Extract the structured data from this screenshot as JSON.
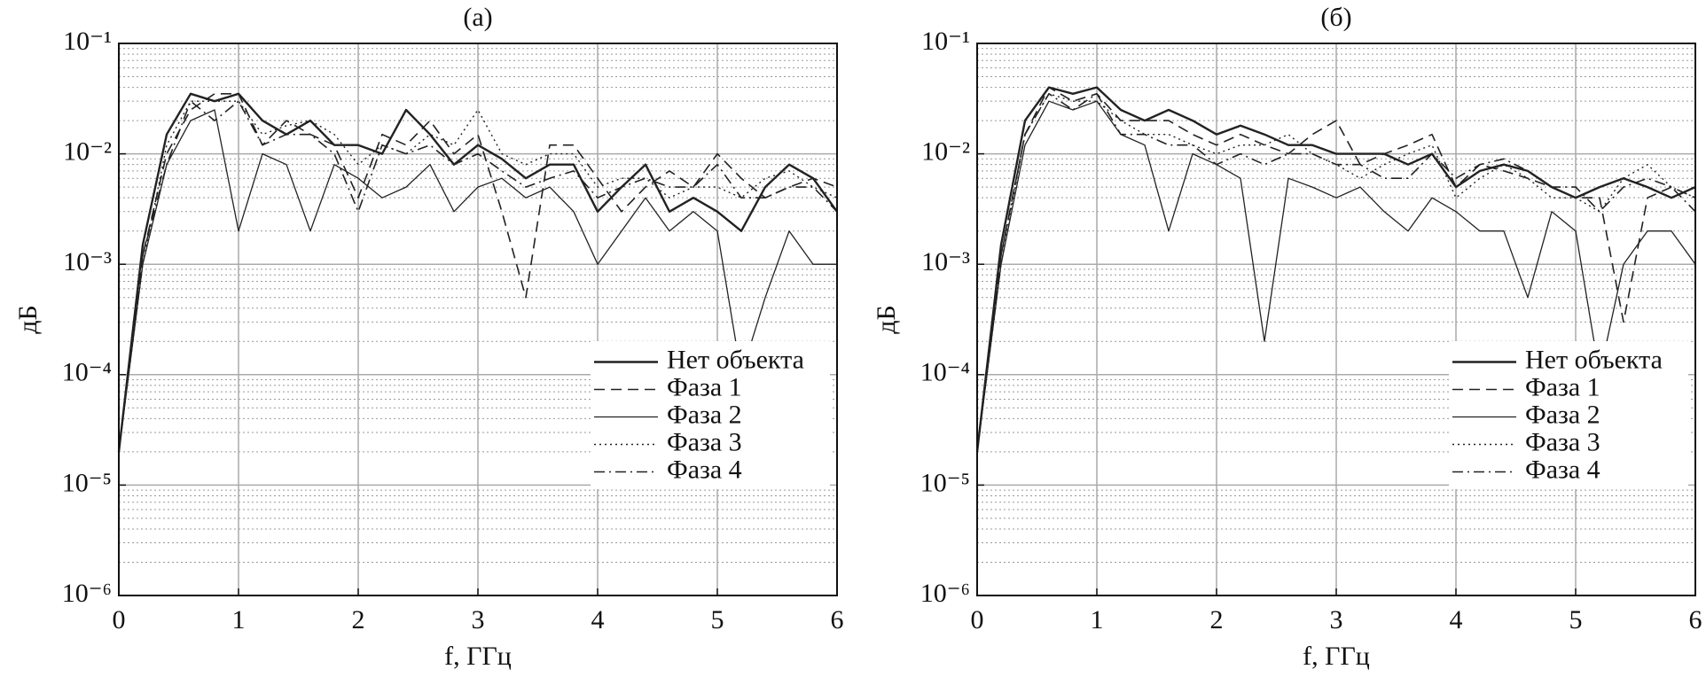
{
  "chart_data": [
    {
      "type": "line",
      "title": "(а)",
      "xlabel": "f, ГГц",
      "ylabel": "дБ",
      "log_y": true,
      "grid": true,
      "minor_grid": true,
      "legend": "lower right",
      "xlim": [
        0,
        6
      ],
      "xticks": [
        0,
        1,
        2,
        3,
        4,
        5,
        6
      ],
      "ylim": [
        1e-06,
        0.1
      ],
      "yticks": [
        {
          "value": 1e-06,
          "label": "10⁻⁶"
        },
        {
          "value": 1e-05,
          "label": "10⁻⁵"
        },
        {
          "value": 0.0001,
          "label": "10⁻⁴"
        },
        {
          "value": 0.001,
          "label": "10⁻³"
        },
        {
          "value": 0.01,
          "label": "10⁻²"
        },
        {
          "value": 0.1,
          "label": "10⁻¹"
        }
      ],
      "x": [
        0,
        0.2,
        0.4,
        0.6,
        0.8,
        1.0,
        1.2,
        1.4,
        1.6,
        1.8,
        2.0,
        2.2,
        2.4,
        2.6,
        2.8,
        3.0,
        3.2,
        3.4,
        3.6,
        3.8,
        4.0,
        4.2,
        4.4,
        4.6,
        4.8,
        5.0,
        5.2,
        5.4,
        5.6,
        5.8,
        6.0
      ],
      "series": [
        {
          "name": "Нет объекта",
          "color": "#222222",
          "linestyle": "solid",
          "linewidth": 2.4,
          "values": [
            2e-05,
            0.0015,
            0.015,
            0.035,
            0.03,
            0.035,
            0.02,
            0.015,
            0.02,
            0.012,
            0.012,
            0.01,
            0.025,
            0.015,
            0.008,
            0.012,
            0.009,
            0.006,
            0.008,
            0.008,
            0.003,
            0.005,
            0.008,
            0.003,
            0.004,
            0.003,
            0.002,
            0.005,
            0.008,
            0.006,
            0.003
          ]
        },
        {
          "name": "Фаза 1",
          "color": "#222222",
          "linestyle": "dashed",
          "linewidth": 1.6,
          "values": [
            2e-05,
            0.0012,
            0.01,
            0.025,
            0.035,
            0.035,
            0.012,
            0.02,
            0.015,
            0.012,
            0.004,
            0.015,
            0.012,
            0.02,
            0.01,
            0.015,
            0.003,
            0.0005,
            0.012,
            0.012,
            0.006,
            0.003,
            0.005,
            0.007,
            0.005,
            0.01,
            0.006,
            0.004,
            0.005,
            0.006,
            0.005
          ]
        },
        {
          "name": "Фаза 2",
          "color": "#222222",
          "linestyle": "solid",
          "linewidth": 1.3,
          "values": [
            2e-05,
            0.001,
            0.008,
            0.02,
            0.025,
            0.002,
            0.01,
            0.008,
            0.002,
            0.008,
            0.006,
            0.004,
            0.005,
            0.008,
            0.003,
            0.005,
            0.006,
            0.004,
            0.005,
            0.003,
            0.001,
            0.002,
            0.004,
            0.002,
            0.003,
            0.002,
            0.0001,
            0.0005,
            0.002,
            0.001,
            0.001
          ]
        },
        {
          "name": "Фаза 3",
          "color": "#222222",
          "linestyle": "dotted",
          "linewidth": 1.4,
          "values": [
            2e-05,
            0.001,
            0.012,
            0.03,
            0.03,
            0.03,
            0.015,
            0.018,
            0.02,
            0.015,
            0.008,
            0.012,
            0.01,
            0.015,
            0.012,
            0.025,
            0.01,
            0.008,
            0.01,
            0.01,
            0.005,
            0.006,
            0.006,
            0.004,
            0.005,
            0.005,
            0.004,
            0.006,
            0.007,
            0.005,
            0.004
          ]
        },
        {
          "name": "Фаза 4",
          "color": "#222222",
          "linestyle": "dashdot",
          "linewidth": 1.6,
          "values": [
            2e-05,
            0.0012,
            0.008,
            0.03,
            0.02,
            0.03,
            0.012,
            0.015,
            0.015,
            0.01,
            0.003,
            0.012,
            0.01,
            0.012,
            0.008,
            0.01,
            0.007,
            0.005,
            0.006,
            0.007,
            0.004,
            0.005,
            0.006,
            0.005,
            0.005,
            0.008,
            0.004,
            0.004,
            0.005,
            0.005,
            0.003
          ]
        }
      ]
    },
    {
      "type": "line",
      "title": "(б)",
      "xlabel": "f, ГГц",
      "ylabel": "дБ",
      "log_y": true,
      "grid": true,
      "minor_grid": true,
      "legend": "lower right",
      "xlim": [
        0,
        6
      ],
      "xticks": [
        0,
        1,
        2,
        3,
        4,
        5,
        6
      ],
      "ylim": [
        1e-06,
        0.1
      ],
      "yticks": [
        {
          "value": 1e-06,
          "label": "10⁻⁶"
        },
        {
          "value": 1e-05,
          "label": "10⁻⁵"
        },
        {
          "value": 0.0001,
          "label": "10⁻⁴"
        },
        {
          "value": 0.001,
          "label": "10⁻³"
        },
        {
          "value": 0.01,
          "label": "10⁻²"
        },
        {
          "value": 0.1,
          "label": "10⁻¹"
        }
      ],
      "x": [
        0,
        0.2,
        0.4,
        0.6,
        0.8,
        1.0,
        1.2,
        1.4,
        1.6,
        1.8,
        2.0,
        2.2,
        2.4,
        2.6,
        2.8,
        3.0,
        3.2,
        3.4,
        3.6,
        3.8,
        4.0,
        4.2,
        4.4,
        4.6,
        4.8,
        5.0,
        5.2,
        5.4,
        5.6,
        5.8,
        6.0
      ],
      "series": [
        {
          "name": "Нет объекта",
          "color": "#222222",
          "linestyle": "solid",
          "linewidth": 2.4,
          "values": [
            2e-05,
            0.0015,
            0.02,
            0.04,
            0.035,
            0.04,
            0.025,
            0.02,
            0.025,
            0.02,
            0.015,
            0.018,
            0.015,
            0.012,
            0.012,
            0.01,
            0.01,
            0.01,
            0.008,
            0.01,
            0.005,
            0.007,
            0.008,
            0.007,
            0.005,
            0.004,
            0.005,
            0.006,
            0.005,
            0.004,
            0.005
          ]
        },
        {
          "name": "Фаза 1",
          "color": "#222222",
          "linestyle": "dashed",
          "linewidth": 1.6,
          "values": [
            2e-05,
            0.0012,
            0.015,
            0.04,
            0.03,
            0.035,
            0.02,
            0.02,
            0.02,
            0.015,
            0.012,
            0.015,
            0.012,
            0.01,
            0.015,
            0.02,
            0.008,
            0.01,
            0.012,
            0.015,
            0.005,
            0.008,
            0.007,
            0.006,
            0.005,
            0.004,
            0.004,
            0.0003,
            0.004,
            0.005,
            0.004
          ]
        },
        {
          "name": "Фаза 2",
          "color": "#222222",
          "linestyle": "solid",
          "linewidth": 1.3,
          "values": [
            2e-05,
            0.001,
            0.012,
            0.03,
            0.025,
            0.03,
            0.015,
            0.012,
            0.002,
            0.01,
            0.008,
            0.006,
            0.0002,
            0.006,
            0.005,
            0.004,
            0.005,
            0.003,
            0.002,
            0.004,
            0.003,
            0.002,
            0.002,
            0.0005,
            0.003,
            0.002,
            0.0001,
            0.001,
            0.002,
            0.002,
            0.001
          ]
        },
        {
          "name": "Фаза 3",
          "color": "#222222",
          "linestyle": "dotted",
          "linewidth": 1.4,
          "values": [
            2e-05,
            0.001,
            0.015,
            0.035,
            0.03,
            0.03,
            0.02,
            0.015,
            0.015,
            0.012,
            0.01,
            0.012,
            0.012,
            0.015,
            0.01,
            0.008,
            0.006,
            0.008,
            0.01,
            0.012,
            0.004,
            0.006,
            0.008,
            0.006,
            0.004,
            0.004,
            0.003,
            0.006,
            0.008,
            0.005,
            0.004
          ]
        },
        {
          "name": "Фаза 4",
          "color": "#222222",
          "linestyle": "dashdot",
          "linewidth": 1.6,
          "values": [
            2e-05,
            0.0012,
            0.015,
            0.035,
            0.025,
            0.035,
            0.015,
            0.015,
            0.012,
            0.012,
            0.008,
            0.01,
            0.008,
            0.01,
            0.01,
            0.008,
            0.008,
            0.006,
            0.006,
            0.01,
            0.006,
            0.008,
            0.009,
            0.007,
            0.005,
            0.005,
            0.003,
            0.005,
            0.006,
            0.005,
            0.003
          ]
        }
      ]
    }
  ]
}
